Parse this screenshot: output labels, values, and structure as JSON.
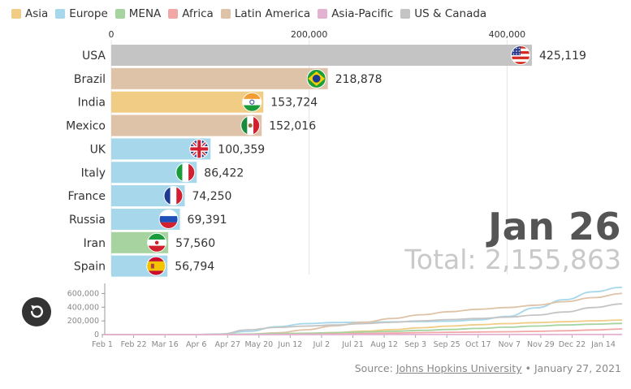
{
  "legend": [
    {
      "name": "Asia",
      "color": "#f0cc84"
    },
    {
      "name": "Europe",
      "color": "#a6d7ea"
    },
    {
      "name": "MENA",
      "color": "#a6d3a0"
    },
    {
      "name": "Africa",
      "color": "#f2a7a7"
    },
    {
      "name": "Latin America",
      "color": "#dfc3a8"
    },
    {
      "name": "Asia-Pacific",
      "color": "#e3b2d2"
    },
    {
      "name": "US & Canada",
      "color": "#c4c4c4"
    }
  ],
  "date_label": "Jan 26",
  "total_label": "Total: 2,155,863",
  "chart_data": [
    {
      "type": "bar",
      "orientation": "horizontal",
      "categories": [
        "USA",
        "Brazil",
        "India",
        "Mexico",
        "UK",
        "Italy",
        "France",
        "Russia",
        "Iran",
        "Spain"
      ],
      "values": [
        425119,
        218878,
        153724,
        152016,
        100359,
        86422,
        74250,
        69391,
        57560,
        56794
      ],
      "value_labels": [
        "425,119",
        "218,878",
        "153,724",
        "152,016",
        "100,359",
        "86,422",
        "74,250",
        "69,391",
        "57,560",
        "56,794"
      ],
      "region": [
        "US & Canada",
        "Latin America",
        "Asia",
        "Latin America",
        "Europe",
        "Europe",
        "Europe",
        "Europe",
        "MENA",
        "Europe"
      ],
      "flags": [
        "usa-flag-icon",
        "brazil-flag-icon",
        "india-flag-icon",
        "mexico-flag-icon",
        "uk-flag-icon",
        "italy-flag-icon",
        "france-flag-icon",
        "russia-flag-icon",
        "iran-flag-icon",
        "spain-flag-icon"
      ],
      "xlim": [
        0,
        425119
      ],
      "xticks": [
        0,
        200000,
        400000
      ],
      "xtick_labels": [
        "0",
        "200,000",
        "400,000"
      ],
      "legend_position": "top-left"
    },
    {
      "type": "line",
      "x_tick_labels": [
        "Feb 1",
        "Feb 22",
        "Mar 16",
        "Apr 6",
        "Apr 27",
        "May 20",
        "Jun 12",
        "Jul 2",
        "Jul 21",
        "Aug 12",
        "Sep 3",
        "Sep 25",
        "Oct 17",
        "Nov 7",
        "Nov 29",
        "Dec 22",
        "Jan 14"
      ],
      "y_tick_labels": [
        "600,000",
        "400,000",
        "200,000",
        "0"
      ],
      "yticks": [
        600000,
        400000,
        200000,
        0
      ],
      "ylim": [
        0,
        700000
      ],
      "series": [
        {
          "region": "Europe",
          "color": "#a6d7ea",
          "values": [
            0,
            0,
            0,
            0,
            8000,
            48000,
            115000,
            160000,
            176000,
            182000,
            186000,
            190000,
            196000,
            215000,
            265000,
            390000,
            510000,
            625000,
            690000
          ]
        },
        {
          "region": "Latin America",
          "color": "#dfc3a8",
          "values": [
            0,
            0,
            0,
            0,
            0,
            6000,
            26000,
            70000,
            128000,
            180000,
            235000,
            290000,
            335000,
            370000,
            395000,
            430000,
            480000,
            540000,
            600000
          ]
        },
        {
          "region": "US & Canada",
          "color": "#c4c4c4",
          "values": [
            0,
            0,
            0,
            0,
            6000,
            70000,
            105000,
            125000,
            140000,
            160000,
            180000,
            200000,
            220000,
            235000,
            255000,
            285000,
            330000,
            395000,
            450000
          ]
        },
        {
          "region": "Asia",
          "color": "#f0cc84",
          "values": [
            0,
            0,
            0,
            0,
            0,
            2000,
            6000,
            15000,
            30000,
            50000,
            72000,
            100000,
            125000,
            145000,
            160000,
            175000,
            188000,
            200000,
            212000
          ]
        },
        {
          "region": "MENA",
          "color": "#a6d3a0",
          "values": [
            0,
            0,
            0,
            0,
            2000,
            8000,
            14000,
            20000,
            28000,
            38000,
            48000,
            60000,
            75000,
            90000,
            108000,
            125000,
            140000,
            152000,
            162000
          ]
        },
        {
          "region": "Africa",
          "color": "#f2a7a7",
          "values": [
            0,
            0,
            0,
            0,
            0,
            0,
            1000,
            3000,
            8000,
            15000,
            22000,
            28000,
            33000,
            38000,
            42000,
            48000,
            56000,
            68000,
            82000
          ]
        },
        {
          "region": "Asia-Pacific",
          "color": "#e3b2d2",
          "values": [
            0,
            0,
            0,
            0,
            0,
            0,
            0,
            0,
            200,
            500,
            800,
            1000,
            1200,
            1300,
            1400,
            1500,
            1600,
            1700,
            1800
          ]
        }
      ]
    }
  ],
  "source": {
    "prefix": "Source: ",
    "link_text": "Johns Hopkins University",
    "suffix": " • January 27, 2021"
  }
}
